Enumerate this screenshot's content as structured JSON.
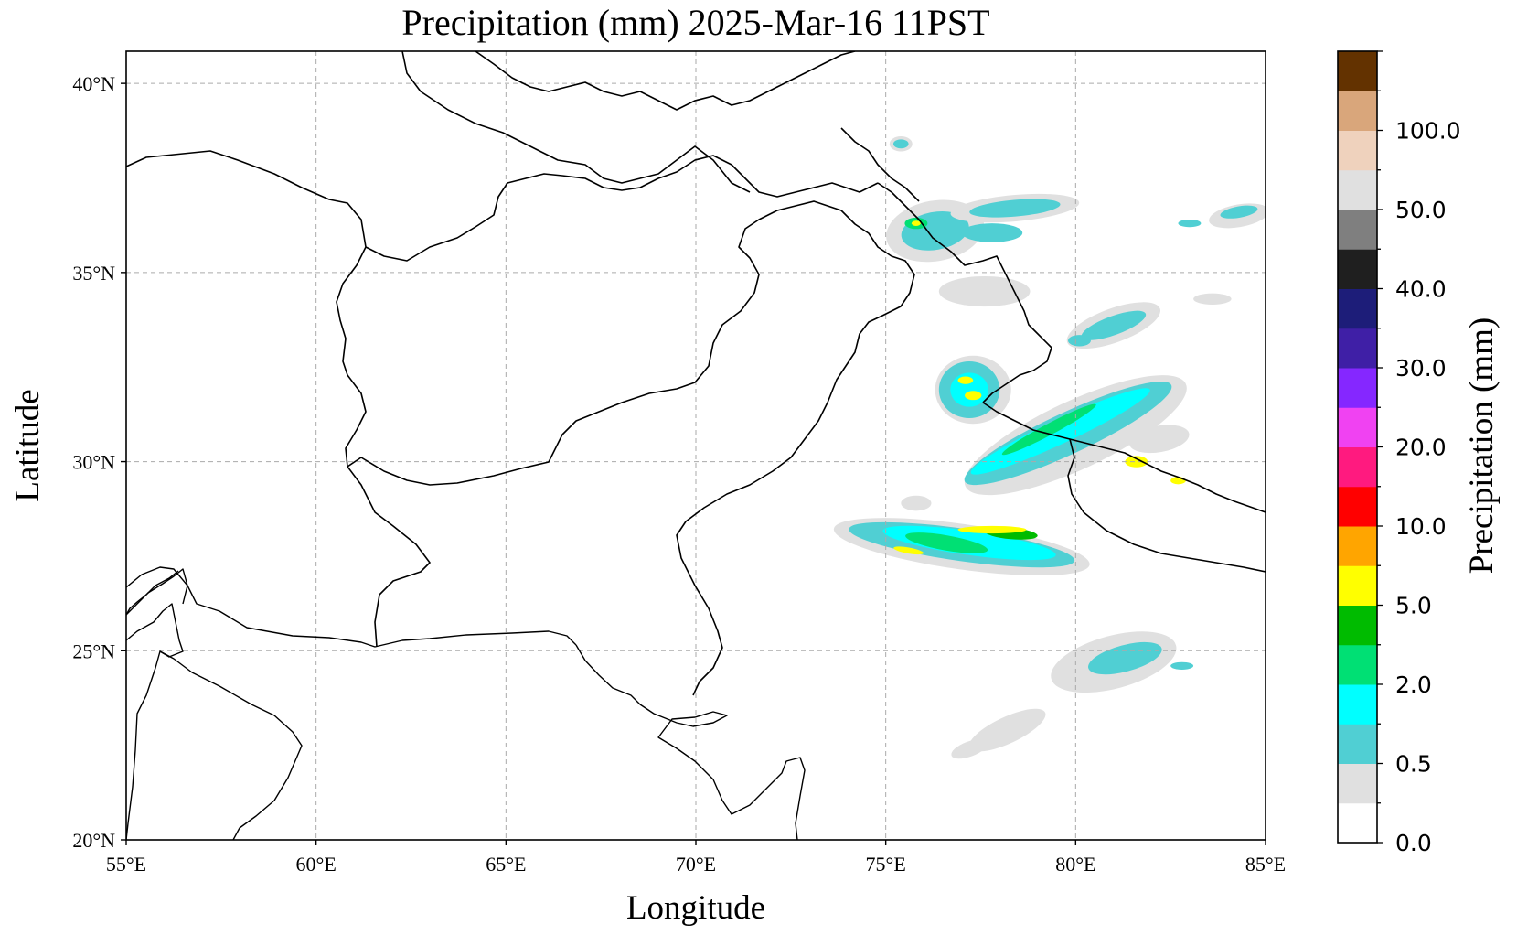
{
  "chart_data": {
    "type": "heatmap",
    "title": "Precipitation (mm)  2025-Mar-16 11PST",
    "xlabel": "Longitude",
    "ylabel": "Latitude",
    "xlim": [
      55,
      85
    ],
    "ylim": [
      20,
      40.85
    ],
    "grid": true,
    "x_ticks": [
      {
        "value": 55,
        "label": "55°E"
      },
      {
        "value": 60,
        "label": "60°E"
      },
      {
        "value": 65,
        "label": "65°E"
      },
      {
        "value": 70,
        "label": "70°E"
      },
      {
        "value": 75,
        "label": "75°E"
      },
      {
        "value": 80,
        "label": "80°E"
      },
      {
        "value": 85,
        "label": "85°E"
      }
    ],
    "y_ticks": [
      {
        "value": 20,
        "label": "20°N"
      },
      {
        "value": 25,
        "label": "25°N"
      },
      {
        "value": 30,
        "label": "30°N"
      },
      {
        "value": 35,
        "label": "35°N"
      },
      {
        "value": 40,
        "label": "40°N"
      }
    ],
    "colorbar": {
      "label": "Precipitation (mm)",
      "levels": [
        0,
        0.2,
        0.5,
        1,
        2,
        3,
        5,
        7,
        10,
        15,
        20,
        25,
        30,
        35,
        40,
        45,
        50,
        60,
        100,
        150
      ],
      "colors": [
        "#ffffff",
        "#e0e0e0",
        "#50cfd3",
        "#00ffff",
        "#00e074",
        "#00bb00",
        "#ffff00",
        "#ffa500",
        "#ff0000",
        "#ff1a7f",
        "#f042f2",
        "#8527ff",
        "#3f1fa6",
        "#1d1d79",
        "#1f1f1f",
        "#7f7f7f",
        "#e0e0e0",
        "#efd2bd",
        "#d9a67b",
        "#633200"
      ],
      "tick_labels": [
        {
          "index": 0,
          "label": "0.0"
        },
        {
          "index": 2,
          "label": "0.5"
        },
        {
          "index": 4,
          "label": "2.0"
        },
        {
          "index": 6,
          "label": "5.0"
        },
        {
          "index": 8,
          "label": "10.0"
        },
        {
          "index": 10,
          "label": "20.0"
        },
        {
          "index": 12,
          "label": "30.0"
        },
        {
          "index": 14,
          "label": "40.0"
        },
        {
          "index": 16,
          "label": "50.0"
        },
        {
          "index": 18,
          "label": "100.0"
        }
      ]
    },
    "precip_regions": [
      {
        "lon": 77.0,
        "lat": 27.75,
        "rlon": 3.4,
        "rlat": 0.6,
        "rot": 8,
        "level": 1
      },
      {
        "lon": 77.0,
        "lat": 27.8,
        "rlon": 3.0,
        "rlat": 0.43,
        "rot": 8,
        "level": 2
      },
      {
        "lon": 77.2,
        "lat": 27.85,
        "rlon": 2.3,
        "rlat": 0.32,
        "rot": 8,
        "level": 3
      },
      {
        "lon": 76.6,
        "lat": 27.85,
        "rlon": 1.1,
        "rlat": 0.2,
        "rot": 10,
        "level": 4
      },
      {
        "lon": 78.3,
        "lat": 28.1,
        "rlon": 0.7,
        "rlat": 0.15,
        "rot": 5,
        "level": 5
      },
      {
        "lon": 77.8,
        "lat": 28.2,
        "rlon": 0.9,
        "rlat": 0.1,
        "rot": 0,
        "level": 6
      },
      {
        "lon": 75.6,
        "lat": 27.65,
        "rlon": 0.4,
        "rlat": 0.08,
        "rot": 10,
        "level": 6
      },
      {
        "lon": 80.0,
        "lat": 30.7,
        "rlon": 3.2,
        "rlat": 0.9,
        "rot": -25,
        "level": 1
      },
      {
        "lon": 79.8,
        "lat": 30.75,
        "rlon": 3.0,
        "rlat": 0.55,
        "rot": -25,
        "level": 2
      },
      {
        "lon": 79.6,
        "lat": 30.8,
        "rlon": 2.6,
        "rlat": 0.32,
        "rot": -25,
        "level": 3
      },
      {
        "lon": 79.3,
        "lat": 30.85,
        "rlon": 1.4,
        "rlat": 0.15,
        "rot": -28,
        "level": 4
      },
      {
        "lon": 81.6,
        "lat": 30.0,
        "rlon": 0.3,
        "rlat": 0.15,
        "rot": 0,
        "level": 6
      },
      {
        "lon": 82.7,
        "lat": 29.5,
        "rlon": 0.2,
        "rlat": 0.1,
        "rot": 0,
        "level": 6
      },
      {
        "lon": 77.3,
        "lat": 31.9,
        "rlon": 1.0,
        "rlat": 0.9,
        "rot": 0,
        "level": 1
      },
      {
        "lon": 77.2,
        "lat": 31.9,
        "rlon": 0.8,
        "rlat": 0.75,
        "rot": 0,
        "level": 2
      },
      {
        "lon": 77.2,
        "lat": 31.9,
        "rlon": 0.5,
        "rlat": 0.45,
        "rot": 0,
        "level": 3
      },
      {
        "lon": 77.3,
        "lat": 31.75,
        "rlon": 0.22,
        "rlat": 0.12,
        "rot": 0,
        "level": 6
      },
      {
        "lon": 77.1,
        "lat": 32.15,
        "rlon": 0.2,
        "rlat": 0.1,
        "rot": 0,
        "level": 6
      },
      {
        "lon": 76.3,
        "lat": 36.1,
        "rlon": 1.3,
        "rlat": 0.8,
        "rot": -10,
        "level": 1
      },
      {
        "lon": 76.3,
        "lat": 36.1,
        "rlon": 0.9,
        "rlat": 0.5,
        "rot": -10,
        "level": 2
      },
      {
        "lon": 75.8,
        "lat": 36.3,
        "rlon": 0.3,
        "rlat": 0.15,
        "rot": 0,
        "level": 4
      },
      {
        "lon": 75.8,
        "lat": 36.3,
        "rlon": 0.12,
        "rlat": 0.07,
        "rot": 0,
        "level": 6
      },
      {
        "lon": 78.4,
        "lat": 36.7,
        "rlon": 1.7,
        "rlat": 0.35,
        "rot": -5,
        "level": 1
      },
      {
        "lon": 78.4,
        "lat": 36.7,
        "rlon": 1.2,
        "rlat": 0.22,
        "rot": -5,
        "level": 2
      },
      {
        "lon": 81.0,
        "lat": 33.6,
        "rlon": 1.3,
        "rlat": 0.45,
        "rot": -20,
        "level": 1
      },
      {
        "lon": 81.0,
        "lat": 33.6,
        "rlon": 0.9,
        "rlat": 0.25,
        "rot": -20,
        "level": 2
      },
      {
        "lon": 81.0,
        "lat": 24.7,
        "rlon": 1.7,
        "rlat": 0.7,
        "rot": -15,
        "level": 1
      },
      {
        "lon": 81.3,
        "lat": 24.8,
        "rlon": 1.0,
        "rlat": 0.35,
        "rot": -15,
        "level": 2
      },
      {
        "lon": 84.3,
        "lat": 36.5,
        "rlon": 0.8,
        "rlat": 0.3,
        "rot": -10,
        "level": 1
      },
      {
        "lon": 84.3,
        "lat": 36.6,
        "rlon": 0.5,
        "rlat": 0.15,
        "rot": -10,
        "level": 2
      },
      {
        "lon": 75.4,
        "lat": 38.4,
        "rlon": 0.3,
        "rlat": 0.2,
        "rot": 0,
        "level": 1
      },
      {
        "lon": 75.4,
        "lat": 38.4,
        "rlon": 0.2,
        "rlat": 0.12,
        "rot": 0,
        "level": 2
      },
      {
        "lon": 78.2,
        "lat": 22.9,
        "rlon": 1.1,
        "rlat": 0.35,
        "rot": -25,
        "level": 1
      },
      {
        "lon": 77.2,
        "lat": 22.4,
        "rlon": 0.5,
        "rlat": 0.2,
        "rot": -20,
        "level": 1
      },
      {
        "lon": 77.6,
        "lat": 34.5,
        "rlon": 1.2,
        "rlat": 0.4,
        "rot": 0,
        "level": 1
      },
      {
        "lon": 83.6,
        "lat": 34.3,
        "rlon": 0.5,
        "rlat": 0.15,
        "rot": 0,
        "level": 1
      },
      {
        "lon": 75.8,
        "lat": 28.9,
        "rlon": 0.4,
        "rlat": 0.2,
        "rot": 0,
        "level": 1
      },
      {
        "lon": 82.2,
        "lat": 30.6,
        "rlon": 0.8,
        "rlat": 0.35,
        "rot": -10,
        "level": 1
      },
      {
        "lon": 77.8,
        "lat": 36.05,
        "rlon": 0.8,
        "rlat": 0.25,
        "rot": 0,
        "level": 2
      },
      {
        "lon": 83.0,
        "lat": 36.3,
        "rlon": 0.3,
        "rlat": 0.1,
        "rot": 0,
        "level": 2
      },
      {
        "lon": 80.1,
        "lat": 33.2,
        "rlon": 0.3,
        "rlat": 0.15,
        "rot": 0,
        "level": 2
      },
      {
        "lon": 82.8,
        "lat": 24.6,
        "rlon": 0.3,
        "rlat": 0.1,
        "rot": 0,
        "level": 2
      }
    ]
  }
}
